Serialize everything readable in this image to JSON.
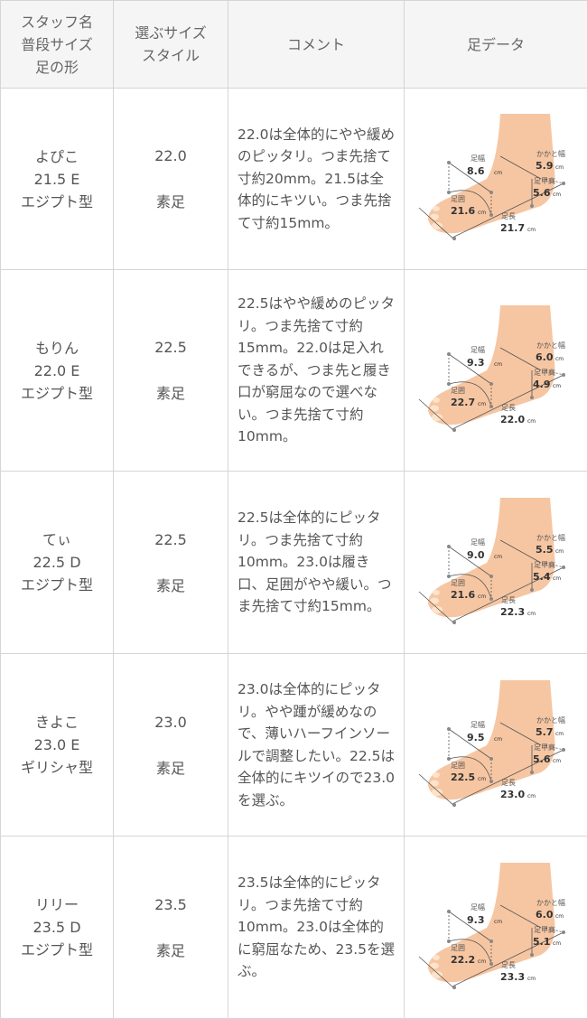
{
  "header": {
    "col1": [
      "スタッフ名",
      "普段サイズ",
      "足の形"
    ],
    "col2": [
      "選ぶサイズ",
      "スタイル"
    ],
    "col3": "コメント",
    "col4": "足データ"
  },
  "labels": {
    "width": "足幅",
    "girth": "足囲",
    "length": "足長",
    "heel": "かかと幅",
    "instep": "足甲高",
    "unit": "cm"
  },
  "rows": [
    {
      "name": "よぴこ",
      "usual": "21.5 E",
      "shape": "エジプト型",
      "size": "22.0",
      "style": "素足",
      "comment": "22.0は全体的にやや緩めのピッタリ。つま先捨て寸約20mm。21.5は全体的にキツい。つま先捨て寸約15mm。",
      "foot": {
        "width": "8.6",
        "girth": "21.6",
        "length": "21.7",
        "heel": "5.9",
        "instep": "5.6"
      }
    },
    {
      "name": "もりん",
      "usual": "22.0 E",
      "shape": "エジプト型",
      "size": "22.5",
      "style": "素足",
      "comment": "22.5はやや緩めのピッタリ。つま先捨て寸約15mm。22.0は足入れできるが、つま先と履き口が窮屈なので選べない。つま先捨て寸約10mm。",
      "foot": {
        "width": "9.3",
        "girth": "22.7",
        "length": "22.0",
        "heel": "6.0",
        "instep": "4.9"
      }
    },
    {
      "name": "てぃ",
      "usual": "22.5 D",
      "shape": "エジプト型",
      "size": "22.5",
      "style": "素足",
      "comment": "22.5は全体的にピッタリ。つま先捨て寸約10mm。23.0は履き口、足囲がやや緩い。つま先捨て寸約15mm。",
      "foot": {
        "width": "9.0",
        "girth": "21.6",
        "length": "22.3",
        "heel": "5.5",
        "instep": "5.4"
      }
    },
    {
      "name": "きよこ",
      "usual": "23.0 E",
      "shape": "ギリシャ型",
      "size": "23.0",
      "style": "素足",
      "comment": "23.0は全体的にピッタリ。やや踵が緩めなので、薄いハーフインソールで調整したい。22.5は全体的にキツイので23.0を選ぶ。",
      "foot": {
        "width": "9.5",
        "girth": "22.5",
        "length": "23.0",
        "heel": "5.7",
        "instep": "5.6"
      }
    },
    {
      "name": "リリー",
      "usual": "23.5 D",
      "shape": "エジプト型",
      "size": "23.5",
      "style": "素足",
      "comment": "23.5は全体的にピッタリ。つま先捨て寸約10mm。23.0は全体的に窮屈なため、23.5を選ぶ。",
      "foot": {
        "width": "9.3",
        "girth": "22.2",
        "length": "23.3",
        "heel": "6.0",
        "instep": "5.1"
      }
    }
  ]
}
